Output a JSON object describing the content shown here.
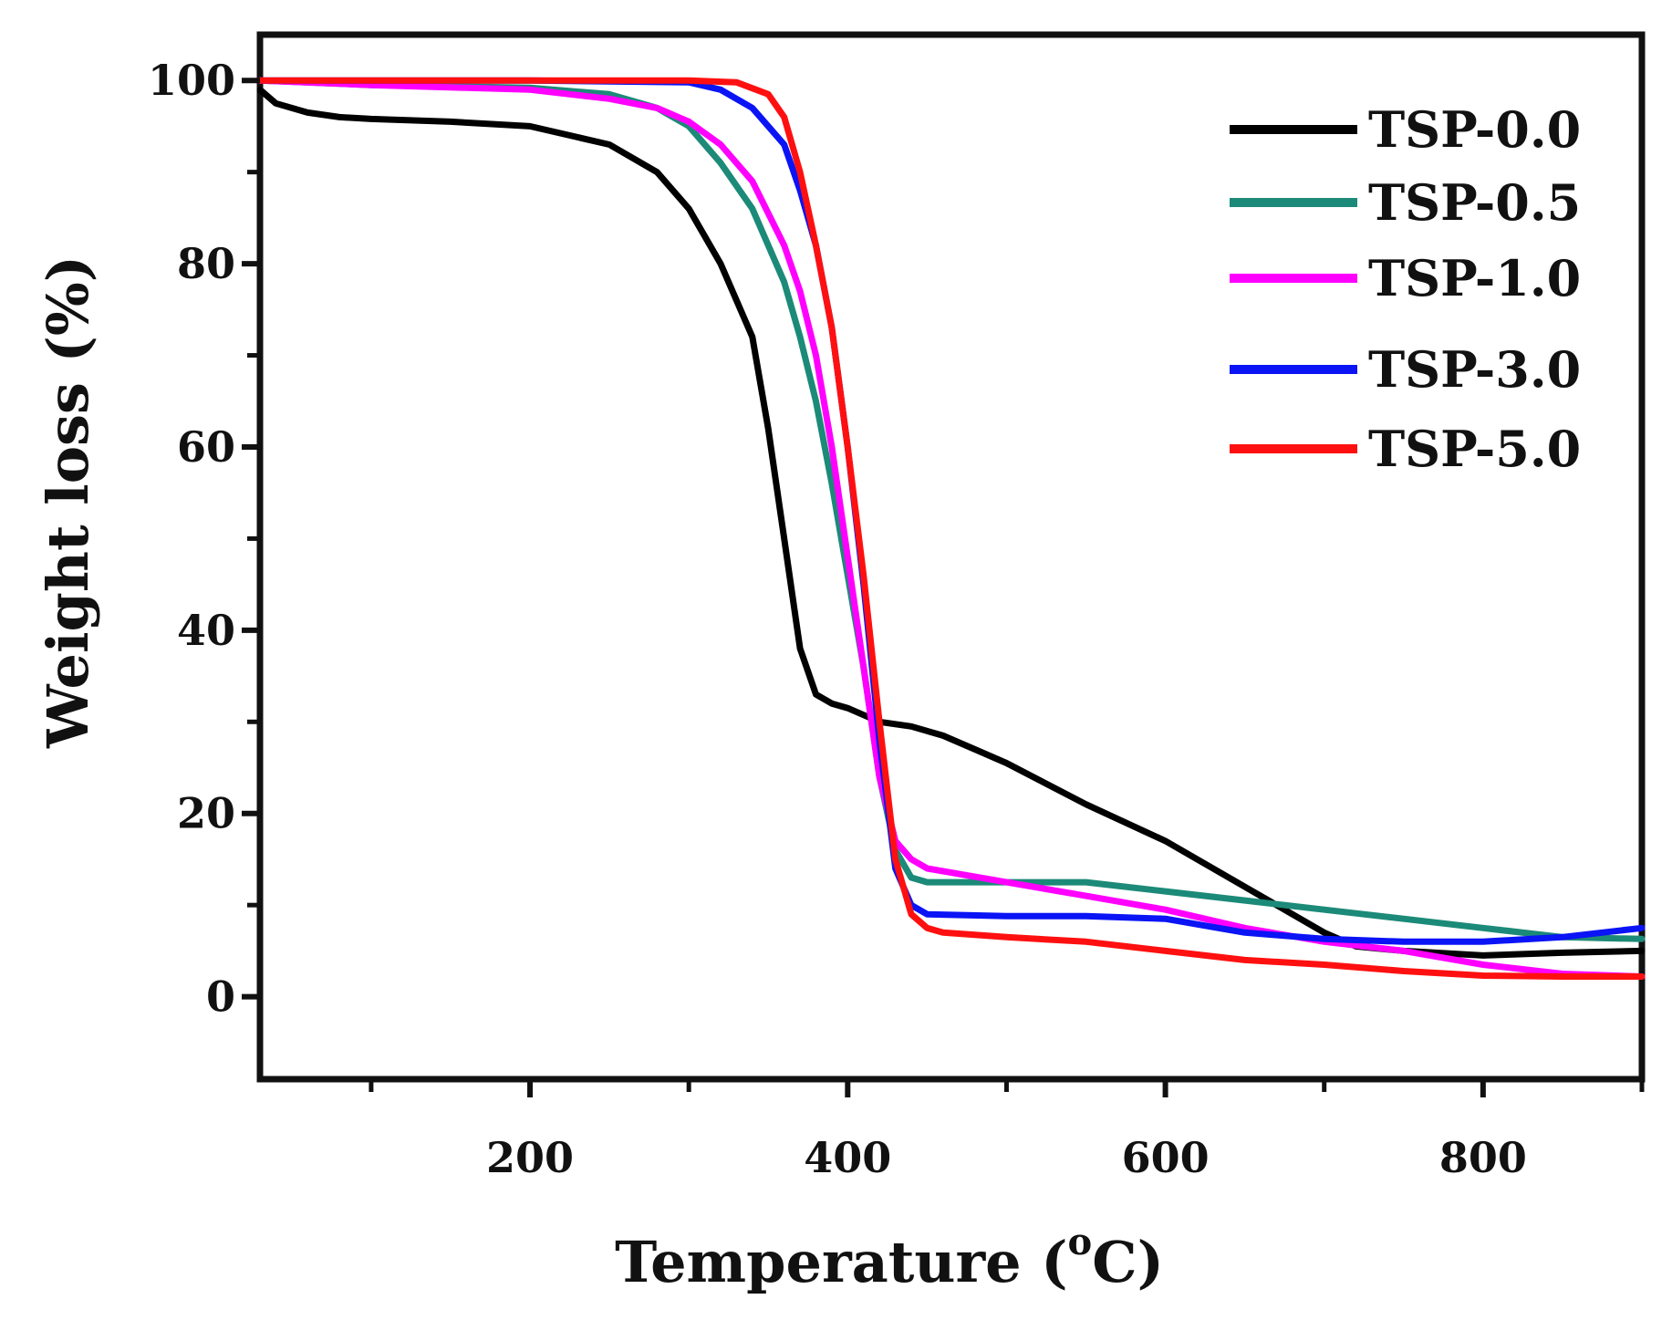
{
  "chart_data": {
    "type": "line",
    "title": "",
    "xlabel": "Temperature (",
    "xlabel_sup": "o",
    "xlabel_end": "C)",
    "ylabel": "Weight loss (%)",
    "xlim": [
      30,
      900
    ],
    "ylim": [
      -9,
      105
    ],
    "x_ticks": [
      200,
      400,
      600,
      800
    ],
    "x_minor_ticks": [
      100,
      300,
      500,
      700,
      900
    ],
    "y_ticks": [
      0,
      20,
      40,
      60,
      80,
      100
    ],
    "y_minor_ticks": [
      10,
      30,
      50,
      70,
      90
    ],
    "grid": false,
    "legend_position": "top-right",
    "series": [
      {
        "name": "TSP-0.0",
        "color": "#000000",
        "x": [
          30,
          40,
          60,
          80,
          100,
          150,
          200,
          250,
          280,
          300,
          320,
          340,
          350,
          360,
          370,
          380,
          390,
          400,
          420,
          440,
          460,
          480,
          500,
          550,
          600,
          650,
          700,
          720,
          750,
          800,
          850,
          900
        ],
        "y": [
          99,
          97.5,
          96.5,
          96,
          95.8,
          95.5,
          95,
          93,
          90,
          86,
          80,
          72,
          62,
          50,
          38,
          33,
          32,
          31.5,
          30,
          29.5,
          28.5,
          27,
          25.5,
          21,
          17,
          12,
          7,
          5.5,
          5,
          4.5,
          4.8,
          5
        ]
      },
      {
        "name": "TSP-0.5",
        "color": "#1c8a78",
        "x": [
          30,
          100,
          200,
          250,
          280,
          300,
          320,
          340,
          360,
          370,
          380,
          390,
          400,
          410,
          420,
          430,
          440,
          450,
          500,
          550,
          600,
          650,
          700,
          750,
          800,
          850,
          900
        ],
        "y": [
          100,
          99.5,
          99.2,
          98.5,
          97,
          95,
          91,
          86,
          78,
          72,
          65,
          56,
          46,
          36,
          24,
          16,
          13,
          12.5,
          12.5,
          12.5,
          11.5,
          10.5,
          9.5,
          8.5,
          7.5,
          6.5,
          6.3
        ]
      },
      {
        "name": "TSP-1.0",
        "color": "#ff00ff",
        "x": [
          30,
          100,
          200,
          250,
          280,
          300,
          320,
          340,
          360,
          370,
          380,
          390,
          400,
          410,
          420,
          430,
          440,
          450,
          500,
          550,
          600,
          650,
          700,
          750,
          800,
          850,
          900
        ],
        "y": [
          100,
          99.5,
          99,
          98,
          97,
          95.5,
          93,
          89,
          82,
          77,
          70,
          60,
          48,
          36,
          24,
          17,
          15,
          14,
          12.5,
          11,
          9.5,
          7.5,
          6,
          5,
          3.5,
          2.5,
          2.2
        ]
      },
      {
        "name": "TSP-3.0",
        "color": "#0a14f5",
        "x": [
          30,
          100,
          200,
          300,
          320,
          340,
          360,
          370,
          380,
          390,
          400,
          410,
          420,
          430,
          440,
          450,
          500,
          550,
          600,
          650,
          700,
          750,
          800,
          850,
          900
        ],
        "y": [
          100,
          100,
          100,
          99.8,
          99,
          97,
          93,
          88,
          82,
          73,
          60,
          45,
          28,
          14,
          10,
          9,
          8.8,
          8.8,
          8.5,
          7,
          6.3,
          6,
          6,
          6.5,
          7.5
        ]
      },
      {
        "name": "TSP-5.0",
        "color": "#ff1010",
        "x": [
          30,
          100,
          200,
          300,
          330,
          350,
          360,
          370,
          380,
          390,
          400,
          410,
          420,
          430,
          440,
          450,
          460,
          500,
          550,
          600,
          650,
          700,
          750,
          800,
          850,
          900
        ],
        "y": [
          100,
          100,
          100,
          100,
          99.8,
          98.5,
          96,
          90,
          82,
          73,
          60,
          46,
          30,
          15,
          9,
          7.5,
          7,
          6.5,
          6,
          5,
          4,
          3.5,
          2.8,
          2.3,
          2.2,
          2.2
        ]
      }
    ]
  }
}
